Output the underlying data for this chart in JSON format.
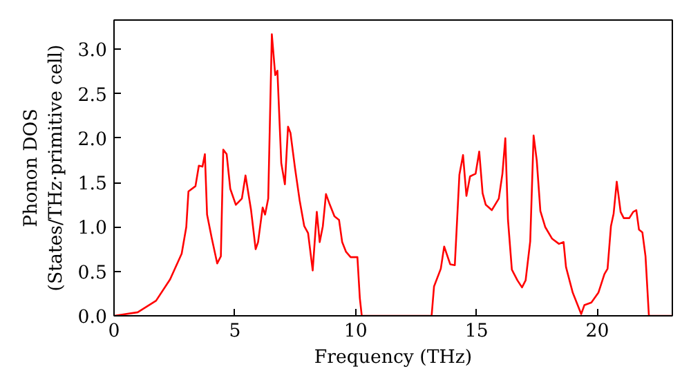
{
  "chart_data": {
    "type": "line",
    "xlabel": "Frequency (THz)",
    "ylabel": "Phonon DOS\n(States/THz·primitive cell)",
    "x": [
      0,
      0.98,
      1.74,
      2.32,
      2.8,
      2.99,
      3.08,
      3.37,
      3.51,
      3.66,
      3.76,
      3.85,
      4.04,
      4.27,
      4.42,
      4.52,
      4.66,
      4.81,
      5.04,
      5.29,
      5.44,
      5.67,
      5.86,
      5.96,
      6.15,
      6.25,
      6.38,
      6.53,
      6.67,
      6.76,
      6.92,
      7.07,
      7.2,
      7.3,
      7.49,
      7.68,
      7.87,
      8.03,
      8.22,
      8.39,
      8.51,
      8.64,
      8.77,
      8.93,
      9.12,
      9.31,
      9.44,
      9.6,
      9.79,
      10.07,
      10.17,
      10.25,
      13.14,
      13.24,
      13.52,
      13.66,
      13.91,
      14.1,
      14.29,
      14.44,
      14.58,
      14.73,
      14.96,
      15.11,
      15.25,
      15.38,
      15.63,
      15.92,
      16.07,
      16.19,
      16.3,
      16.46,
      16.69,
      16.88,
      17.03,
      17.22,
      17.36,
      17.49,
      17.64,
      17.84,
      18.12,
      18.41,
      18.6,
      18.7,
      18.98,
      19.33,
      19.46,
      19.75,
      20.04,
      20.29,
      20.42,
      20.56,
      20.67,
      20.8,
      20.96,
      21.09,
      21.32,
      21.48,
      21.61,
      21.72,
      21.86,
      21.99,
      22.13,
      23.1
    ],
    "series": [
      {
        "color": "#ff0000",
        "values": [
          0,
          0.04,
          0.17,
          0.41,
          0.7,
          1.0,
          1.4,
          1.46,
          1.69,
          1.68,
          1.82,
          1.14,
          0.88,
          0.59,
          0.67,
          1.87,
          1.82,
          1.43,
          1.25,
          1.32,
          1.58,
          1.19,
          0.75,
          0.83,
          1.22,
          1.14,
          1.32,
          3.17,
          2.71,
          2.76,
          1.72,
          1.48,
          2.13,
          2.06,
          1.66,
          1.3,
          1.01,
          0.93,
          0.51,
          1.17,
          0.83,
          1.01,
          1.37,
          1.25,
          1.12,
          1.08,
          0.83,
          0.72,
          0.66,
          0.66,
          0.2,
          0,
          0,
          0.33,
          0.53,
          0.78,
          0.58,
          0.57,
          1.59,
          1.81,
          1.35,
          1.57,
          1.6,
          1.85,
          1.38,
          1.25,
          1.19,
          1.32,
          1.6,
          2.0,
          1.08,
          0.52,
          0.4,
          0.32,
          0.4,
          0.84,
          2.03,
          1.75,
          1.18,
          1.0,
          0.87,
          0.81,
          0.83,
          0.55,
          0.26,
          0.02,
          0.12,
          0.15,
          0.26,
          0.47,
          0.53,
          1.01,
          1.15,
          1.51,
          1.17,
          1.1,
          1.1,
          1.17,
          1.19,
          0.97,
          0.94,
          0.67,
          0,
          0
        ]
      }
    ],
    "xlim": [
      0,
      23.1
    ],
    "ylim": [
      0,
      3.33
    ],
    "xticks": [
      0,
      5,
      10,
      15,
      20
    ],
    "yticks": [
      {
        "value": 0,
        "label": "0.0"
      },
      0.5,
      {
        "value": 1,
        "label": "1.0"
      },
      1.5,
      {
        "value": 2,
        "label": "2.0"
      },
      2.5,
      {
        "value": 3,
        "label": "3.0"
      }
    ],
    "grid": false
  }
}
